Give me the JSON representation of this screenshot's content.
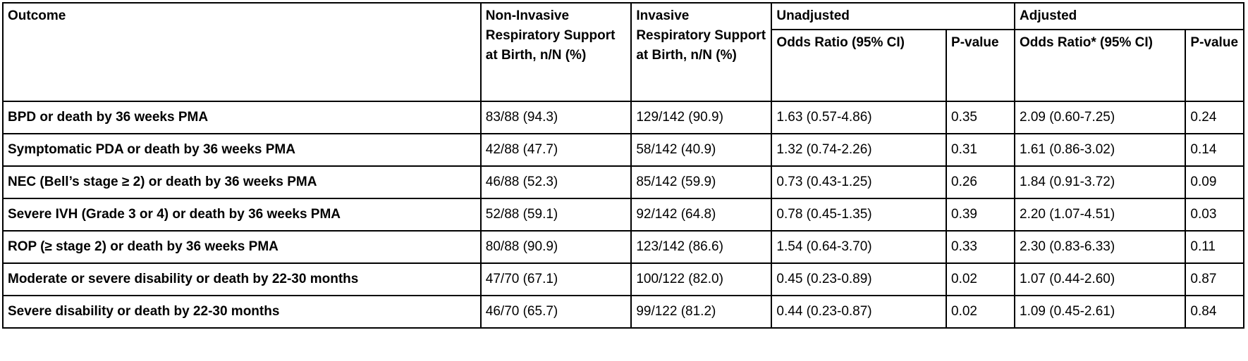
{
  "table": {
    "headers": {
      "outcome": "Outcome",
      "non_invasive": "Non-Invasive Respiratory Support at Birth, n/N (%)",
      "invasive": "Invasive Respiratory Support at Birth, n/N (%)",
      "unadjusted": "Unadjusted",
      "adjusted": "Adjusted",
      "unadj_or": "Odds Ratio (95% CI)",
      "unadj_p": "P-value",
      "adj_or": "Odds Ratio* (95% CI)",
      "adj_p": "P-value"
    },
    "rows": [
      {
        "outcome": "BPD or death by 36 weeks PMA",
        "non_invasive": "83/88 (94.3)",
        "invasive": "129/142 (90.9)",
        "unadj_or": "1.63 (0.57-4.86)",
        "unadj_p": "0.35",
        "adj_or": "2.09 (0.60-7.25)",
        "adj_p": "0.24"
      },
      {
        "outcome": "Symptomatic PDA or death by 36 weeks PMA",
        "non_invasive": "42/88 (47.7)",
        "invasive": "58/142 (40.9)",
        "unadj_or": "1.32 (0.74-2.26)",
        "unadj_p": "0.31",
        "adj_or": "1.61 (0.86-3.02)",
        "adj_p": "0.14"
      },
      {
        "outcome": "NEC (Bell’s stage ≥ 2) or death by 36 weeks PMA",
        "non_invasive": "46/88 (52.3)",
        "invasive": "85/142 (59.9)",
        "unadj_or": "0.73 (0.43-1.25)",
        "unadj_p": "0.26",
        "adj_or": "1.84 (0.91-3.72)",
        "adj_p": "0.09"
      },
      {
        "outcome": "Severe IVH (Grade 3 or 4) or death by 36 weeks PMA",
        "non_invasive": "52/88 (59.1)",
        "invasive": "92/142 (64.8)",
        "unadj_or": "0.78 (0.45-1.35)",
        "unadj_p": "0.39",
        "adj_or": "2.20 (1.07-4.51)",
        "adj_p": "0.03"
      },
      {
        "outcome": "ROP (≥ stage 2) or death by 36 weeks PMA",
        "non_invasive": "80/88 (90.9)",
        "invasive": "123/142 (86.6)",
        "unadj_or": "1.54 (0.64-3.70)",
        "unadj_p": "0.33",
        "adj_or": "2.30 (0.83-6.33)",
        "adj_p": "0.11"
      },
      {
        "outcome": "Moderate or severe disability or death by 22-30 months",
        "non_invasive": "47/70 (67.1)",
        "invasive": "100/122 (82.0)",
        "unadj_or": "0.45 (0.23-0.89)",
        "unadj_p": "0.02",
        "adj_or": "1.07 (0.44-2.60)",
        "adj_p": "0.87"
      },
      {
        "outcome": "Severe disability or death by 22-30 months",
        "non_invasive": "46/70 (65.7)",
        "invasive": "99/122 (81.2)",
        "unadj_or": "0.44 (0.23-0.87)",
        "unadj_p": "0.02",
        "adj_or": "1.09 (0.45-2.61)",
        "adj_p": "0.84"
      }
    ]
  }
}
